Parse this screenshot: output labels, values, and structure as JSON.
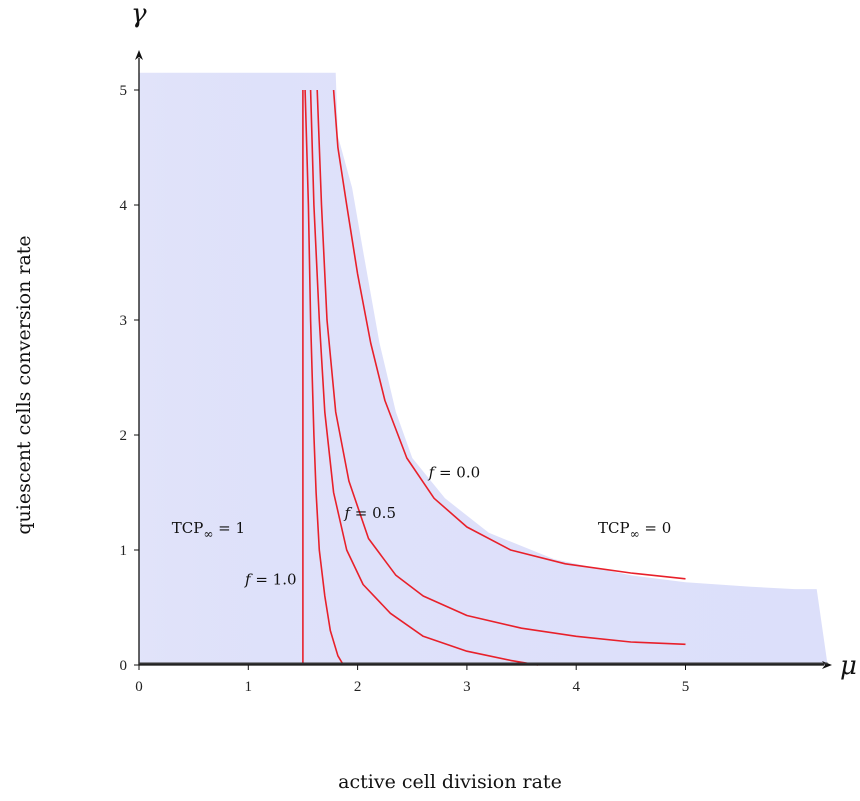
{
  "chart_data": {
    "type": "line",
    "title": "",
    "x_symbol": "μ",
    "y_symbol": "γ",
    "xlabel": "active   cell  division  rate",
    "ylabel": "quiescent   cells   conversion   rate",
    "xlim": [
      0,
      6.5
    ],
    "ylim": [
      0,
      5.2
    ],
    "x_ticks": [
      "0",
      "1",
      "2",
      "3",
      "4",
      "5"
    ],
    "y_ticks": [
      "0",
      "1",
      "2",
      "3",
      "4",
      "5"
    ],
    "grid": false,
    "region_color": "#dcdffa",
    "curve_color": "#e8202a",
    "region_boundary": [
      {
        "x": 0,
        "y": 5.15
      },
      {
        "x": 1.8,
        "y": 5.15
      },
      {
        "x": 1.82,
        "y": 4.6
      },
      {
        "x": 1.95,
        "y": 4.15
      },
      {
        "x": 2.05,
        "y": 3.6
      },
      {
        "x": 2.2,
        "y": 2.8
      },
      {
        "x": 2.35,
        "y": 2.2
      },
      {
        "x": 2.5,
        "y": 1.8
      },
      {
        "x": 2.8,
        "y": 1.45
      },
      {
        "x": 3.2,
        "y": 1.15
      },
      {
        "x": 3.8,
        "y": 0.92
      },
      {
        "x": 4.5,
        "y": 0.78
      },
      {
        "x": 5.0,
        "y": 0.72
      },
      {
        "x": 5.6,
        "y": 0.68
      },
      {
        "x": 6.0,
        "y": 0.66
      },
      {
        "x": 6.2,
        "y": 0.66
      },
      {
        "x": 6.3,
        "y": 0.0
      },
      {
        "x": 0,
        "y": 0.0
      }
    ],
    "series": [
      {
        "label": "f = 1.0",
        "values": [
          {
            "x": 1.5,
            "y": 0.0
          },
          {
            "x": 1.5,
            "y": 5.0
          }
        ]
      },
      {
        "label": "",
        "values": [
          {
            "x": 1.52,
            "y": 5.0
          },
          {
            "x": 1.55,
            "y": 4.0
          },
          {
            "x": 1.57,
            "y": 3.0
          },
          {
            "x": 1.6,
            "y": 2.0
          },
          {
            "x": 1.62,
            "y": 1.5
          },
          {
            "x": 1.65,
            "y": 1.0
          },
          {
            "x": 1.7,
            "y": 0.6
          },
          {
            "x": 1.75,
            "y": 0.3
          },
          {
            "x": 1.82,
            "y": 0.08
          },
          {
            "x": 1.87,
            "y": 0.0
          }
        ]
      },
      {
        "label": "f = 0.5",
        "values": [
          {
            "x": 1.57,
            "y": 5.0
          },
          {
            "x": 1.6,
            "y": 4.0
          },
          {
            "x": 1.65,
            "y": 3.0
          },
          {
            "x": 1.7,
            "y": 2.2
          },
          {
            "x": 1.78,
            "y": 1.5
          },
          {
            "x": 1.9,
            "y": 1.0
          },
          {
            "x": 2.05,
            "y": 0.7
          },
          {
            "x": 2.3,
            "y": 0.45
          },
          {
            "x": 2.6,
            "y": 0.25
          },
          {
            "x": 3.0,
            "y": 0.12
          },
          {
            "x": 3.4,
            "y": 0.04
          },
          {
            "x": 3.65,
            "y": 0.0
          }
        ]
      },
      {
        "label": "",
        "values": [
          {
            "x": 1.63,
            "y": 5.0
          },
          {
            "x": 1.67,
            "y": 4.0
          },
          {
            "x": 1.72,
            "y": 3.0
          },
          {
            "x": 1.8,
            "y": 2.2
          },
          {
            "x": 1.92,
            "y": 1.6
          },
          {
            "x": 2.1,
            "y": 1.1
          },
          {
            "x": 2.35,
            "y": 0.78
          },
          {
            "x": 2.6,
            "y": 0.6
          },
          {
            "x": 3.0,
            "y": 0.43
          },
          {
            "x": 3.5,
            "y": 0.32
          },
          {
            "x": 4.0,
            "y": 0.25
          },
          {
            "x": 4.5,
            "y": 0.2
          },
          {
            "x": 5.0,
            "y": 0.18
          }
        ]
      },
      {
        "label": "f = 0.0",
        "values": [
          {
            "x": 1.78,
            "y": 5.0
          },
          {
            "x": 1.82,
            "y": 4.5
          },
          {
            "x": 1.9,
            "y": 4.0
          },
          {
            "x": 2.0,
            "y": 3.4
          },
          {
            "x": 2.12,
            "y": 2.8
          },
          {
            "x": 2.25,
            "y": 2.3
          },
          {
            "x": 2.45,
            "y": 1.8
          },
          {
            "x": 2.7,
            "y": 1.45
          },
          {
            "x": 3.0,
            "y": 1.2
          },
          {
            "x": 3.4,
            "y": 1.0
          },
          {
            "x": 3.9,
            "y": 0.88
          },
          {
            "x": 4.5,
            "y": 0.8
          },
          {
            "x": 5.0,
            "y": 0.75
          }
        ]
      }
    ],
    "annotations": [
      {
        "text": "TCP",
        "sub": "∞",
        "tail": " = 1",
        "x": 0.3,
        "y": 1.15
      },
      {
        "text": "TCP",
        "sub": "∞",
        "tail": " = 0",
        "x": 4.2,
        "y": 1.15
      },
      {
        "text": "f",
        "tail": " = 1.0",
        "x": 0.97,
        "y": 0.7
      },
      {
        "text": "f",
        "tail": " = 0.5",
        "x": 1.88,
        "y": 1.28
      },
      {
        "text": "f",
        "tail": " = 0.0",
        "x": 2.65,
        "y": 1.63
      }
    ]
  }
}
